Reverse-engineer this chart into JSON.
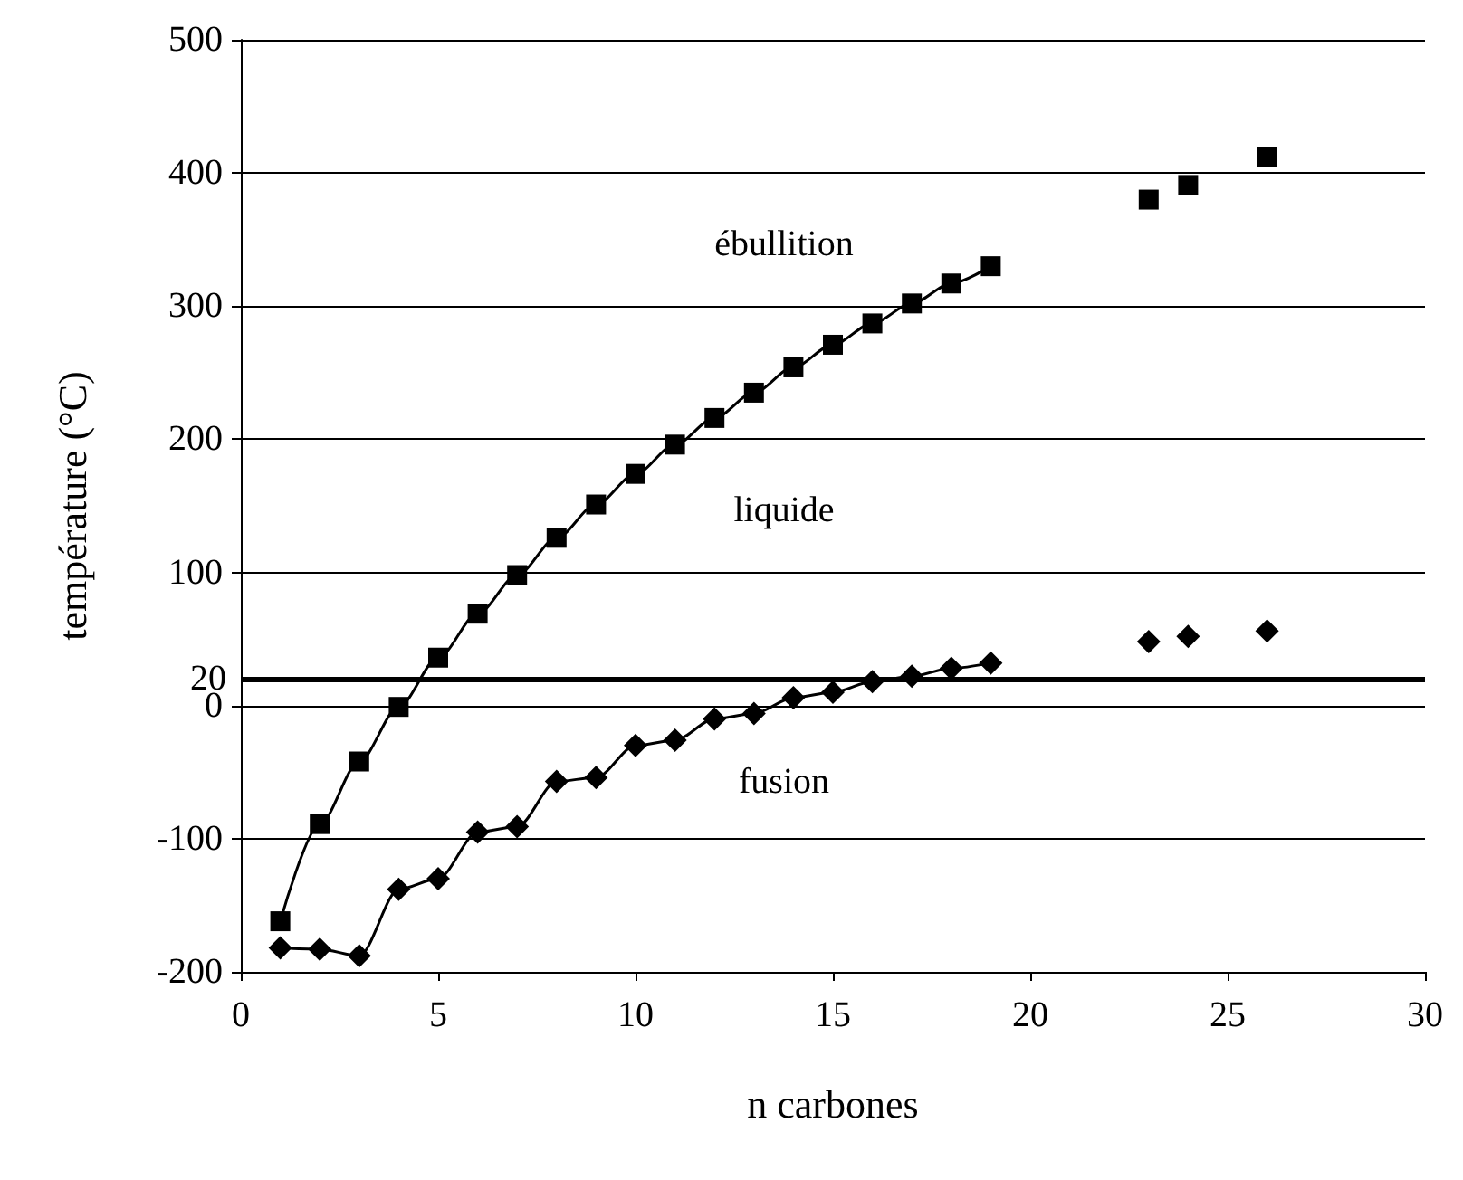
{
  "chart_data": {
    "type": "line",
    "xlabel": "n carbones",
    "ylabel": "température (°C)",
    "xlim": [
      0,
      30
    ],
    "xticks": [
      0,
      5,
      10,
      15,
      20,
      25,
      30
    ],
    "ylim": [
      -200,
      500
    ],
    "yticks": [
      -200,
      -100,
      0,
      100,
      200,
      300,
      400,
      500
    ],
    "grid": "y",
    "line_style": "solid",
    "series": [
      {
        "marker": "square",
        "color": "#000000",
        "x": [
          1,
          2,
          3,
          4,
          5,
          6,
          7,
          8,
          9,
          10,
          11,
          12,
          13,
          14,
          15,
          16,
          17,
          18,
          19
        ],
        "values": [
          -162,
          -89,
          -42,
          -1,
          36,
          69,
          98,
          126,
          151,
          174,
          196,
          216,
          235,
          254,
          271,
          287,
          302,
          317,
          330
        ]
      },
      {
        "type": "scatter",
        "marker": "square",
        "color": "#000000",
        "x": [
          23,
          24,
          26
        ],
        "values": [
          380,
          391,
          412
        ]
      },
      {
        "marker": "diamond",
        "color": "#000000",
        "x": [
          1,
          2,
          3,
          4,
          5,
          6,
          7,
          8,
          9,
          10,
          11,
          12,
          13,
          14,
          15,
          16,
          17,
          18,
          19
        ],
        "values": [
          -182,
          -183,
          -188,
          -138,
          -130,
          -95,
          -91,
          -57,
          -54,
          -30,
          -26,
          -10,
          -6,
          6,
          10,
          18,
          22,
          28,
          32
        ]
      },
      {
        "type": "scatter",
        "marker": "diamond",
        "color": "#000000",
        "x": [
          23,
          24,
          26
        ],
        "values": [
          48,
          52,
          56
        ]
      }
    ],
    "ref_lines": [
      {
        "axis": "y",
        "value": 20,
        "label": "20",
        "color": "#000000"
      }
    ],
    "annotations": [
      "ébullition",
      "liquide",
      "fusion"
    ]
  }
}
